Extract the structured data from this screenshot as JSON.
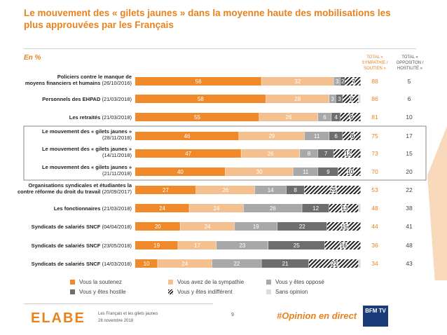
{
  "title": "Le mouvement des « gilets jaunes » dans la moyenne haute des mobilisations les plus approuvées par les Français",
  "unit_label": "En %",
  "col_total_sympathie": "TOTAL « SYMPATHIE / SOUTIEN »",
  "col_total_opposition": "TOTAL « OPPOSITON / HOSTILITÉ »",
  "colors": {
    "soutien": "#f0892a",
    "sympathie": "#f5c08f",
    "oppose": "#a8a8a8",
    "hostile": "#6e6e6e",
    "accent": "#e8821e",
    "highlight_box": "#8a8a8a"
  },
  "legend": {
    "soutien": "Vous la soutenez",
    "sympathie": "Vous avez de la sympathie",
    "oppose": "Vous y êtes opposé",
    "hostile": "Vous y êtes hostile",
    "indifferent": "Vous y êtes indifférent",
    "sans_opinion": "Sans opinion"
  },
  "chart_data": {
    "type": "bar",
    "orientation": "horizontal",
    "stacked": true,
    "xlim": [
      0,
      100
    ],
    "categories": [
      {
        "name": "Policiers contre le manque de moyens financiers et humains",
        "date": "(26/10/2016)"
      },
      {
        "name": "Personnels des EHPAD",
        "date": "(21/03/2018)"
      },
      {
        "name": "Les retraités",
        "date": "(21/03/2018)"
      },
      {
        "name": "Le mouvement des « gilets jaunes »",
        "date": "(28/11/2018)"
      },
      {
        "name": "Le mouvement des « gilets jaunes »",
        "date": "(14/11/2018)"
      },
      {
        "name": "Le mouvement des « gilets jaunes »",
        "date": "(21/11/2018)"
      },
      {
        "name": "Organisations syndicales et étudiantes contre la réforme du droit du travail",
        "date": "(20/09/2017)"
      },
      {
        "name": "Les fonctionnaires",
        "date": "(21/03/2018)"
      },
      {
        "name": "Syndicats de salariés SNCF",
        "date": "(04/04/2018)"
      },
      {
        "name": "Syndicats de salariés SNCF",
        "date": "(23/05/2018)"
      },
      {
        "name": "Syndicats de salariés SNCF",
        "date": "(14/03/2018)"
      }
    ],
    "highlighted_rows": [
      3,
      4,
      5
    ],
    "series": [
      {
        "key": "soutien",
        "name": "Vous la soutenez",
        "values": [
          56,
          58,
          55,
          46,
          47,
          40,
          27,
          24,
          20,
          19,
          10
        ]
      },
      {
        "key": "sympathie",
        "name": "Vous avez de la sympathie",
        "values": [
          32,
          28,
          26,
          29,
          26,
          30,
          26,
          24,
          24,
          17,
          24
        ]
      },
      {
        "key": "oppose",
        "name": "Vous y êtes opposé",
        "values": [
          3,
          3,
          6,
          11,
          8,
          11,
          14,
          26,
          19,
          23,
          22
        ]
      },
      {
        "key": "hostile",
        "name": "Vous y êtes hostile",
        "values": [
          2,
          3,
          4,
          6,
          7,
          9,
          8,
          12,
          22,
          25,
          21
        ]
      },
      {
        "key": "indifferent",
        "name": "Vous y êtes indifférent",
        "values": [
          7,
          7,
          9,
          8,
          12,
          10,
          25,
          13,
          15,
          16,
          22
        ]
      },
      {
        "key": "sans_opinion",
        "name": "Sans opinion",
        "values": [
          0,
          1,
          0,
          0,
          0,
          0,
          0,
          1,
          0,
          0,
          1
        ]
      }
    ],
    "total_sympathie": [
      88,
      86,
      81,
      75,
      73,
      70,
      53,
      48,
      44,
      36,
      34
    ],
    "total_opposition": [
      5,
      6,
      10,
      17,
      15,
      20,
      22,
      38,
      41,
      48,
      43
    ]
  },
  "footer": {
    "brand": "ELABE",
    "source": "Les Français et les gilets jaunes",
    "date": "28 novembre 2018",
    "page": "9",
    "hashtag": "#Opinion en direct",
    "partner": "BFM TV"
  }
}
